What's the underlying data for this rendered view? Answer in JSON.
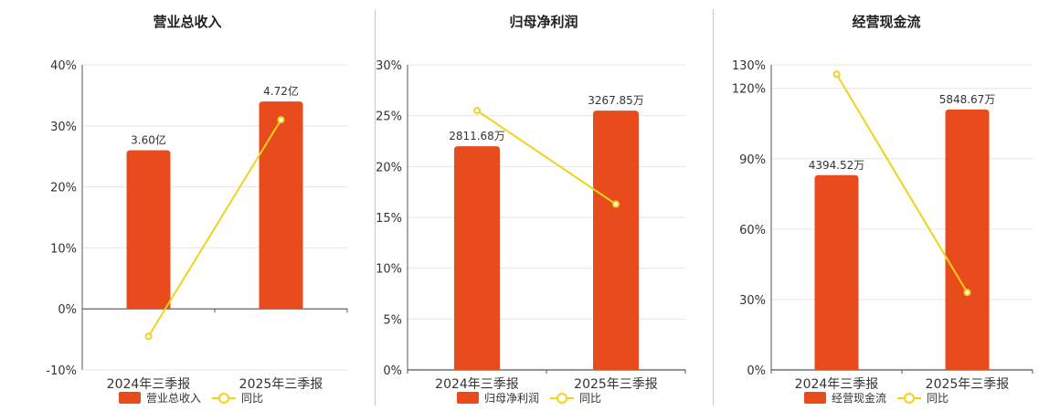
{
  "colors": {
    "bar": "#e84c1c",
    "line": "#f2d21b",
    "grid": "#e6e6e6",
    "axis": "#555555",
    "text": "#333333"
  },
  "chart_data": [
    {
      "type": "bar",
      "title": "营业总收入",
      "categories": [
        "2024年三季报",
        "2025年三季报"
      ],
      "bar_series": {
        "name": "营业总收入",
        "values": [
          26,
          34
        ],
        "labels": [
          "3.60亿",
          "4.72亿"
        ]
      },
      "line_series": {
        "name": "同比",
        "values": [
          -4.5,
          31
        ]
      },
      "ylim": [
        -10,
        40
      ],
      "yticks": [
        -10,
        0,
        10,
        20,
        30,
        40
      ],
      "ytick_labels": [
        "-10%",
        "0%",
        "10%",
        "20%",
        "30%",
        "40%"
      ],
      "grid": true,
      "legend": "bottom-center"
    },
    {
      "type": "bar",
      "title": "归母净利润",
      "categories": [
        "2024年三季报",
        "2025年三季报"
      ],
      "bar_series": {
        "name": "归母净利润",
        "values": [
          22,
          25.5
        ],
        "labels": [
          "2811.68万",
          "3267.85万"
        ]
      },
      "line_series": {
        "name": "同比",
        "values": [
          25.5,
          16.3
        ]
      },
      "ylim": [
        0,
        30
      ],
      "yticks": [
        0,
        5,
        10,
        15,
        20,
        25,
        30
      ],
      "ytick_labels": [
        "0%",
        "5%",
        "10%",
        "15%",
        "20%",
        "25%",
        "30%"
      ],
      "grid": true,
      "legend": "bottom-center"
    },
    {
      "type": "bar",
      "title": "经营现金流",
      "categories": [
        "2024年三季报",
        "2025年三季报"
      ],
      "bar_series": {
        "name": "经营现金流",
        "values": [
          83,
          111
        ],
        "labels": [
          "4394.52万",
          "5848.67万"
        ]
      },
      "line_series": {
        "name": "同比",
        "values": [
          126,
          33
        ]
      },
      "ylim": [
        0,
        130
      ],
      "yticks": [
        0,
        30,
        60,
        90,
        120,
        130
      ],
      "ytick_labels": [
        "0%",
        "30%",
        "60%",
        "90%",
        "120%",
        "130%"
      ],
      "grid": true,
      "legend": "bottom-center"
    }
  ]
}
